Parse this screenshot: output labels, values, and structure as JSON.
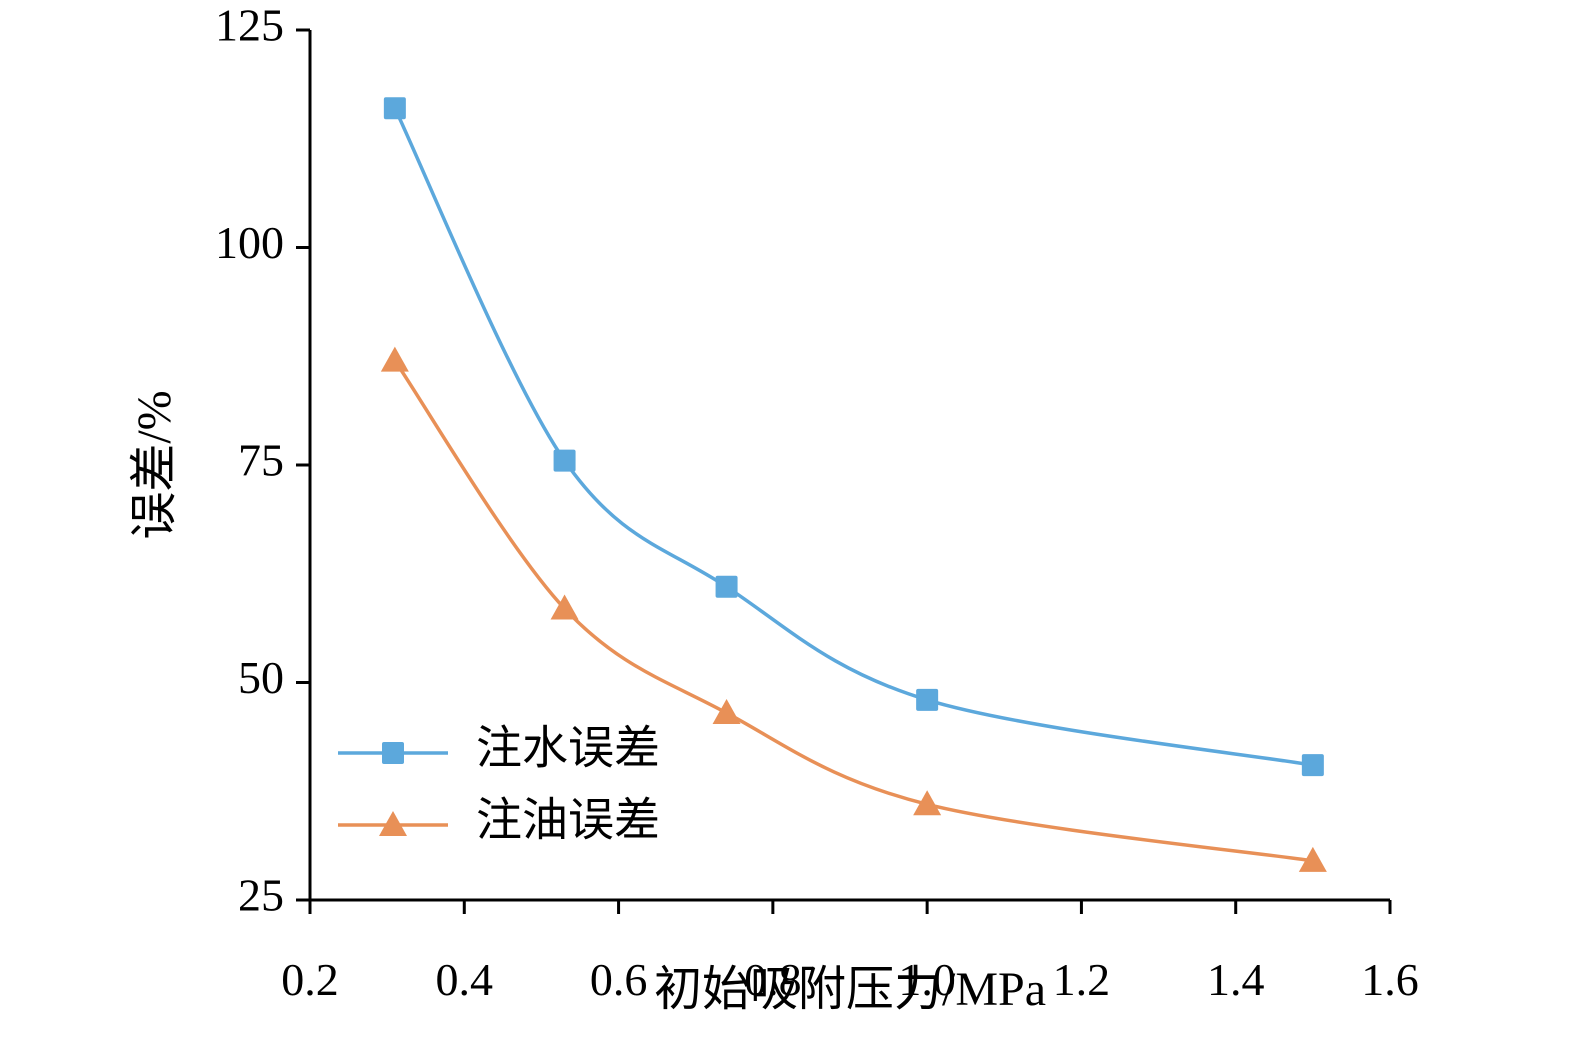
{
  "chart_data": {
    "type": "line",
    "title": "",
    "xlabel": "初始吸附压力/MPa",
    "ylabel": "误差/%",
    "xlim": [
      0.2,
      1.6
    ],
    "ylim": [
      25,
      125
    ],
    "grid": false,
    "legend_position": "inside-lower-left",
    "xticks": [
      0.2,
      0.4,
      0.6,
      0.8,
      1.0,
      1.2,
      1.4,
      1.6
    ],
    "xtick_labels": [
      "0.2",
      "0.4",
      "0.6",
      "0.8",
      "1.0",
      "1.2",
      "1.4",
      "1.6"
    ],
    "yticks": [
      25,
      50,
      75,
      100,
      125
    ],
    "ytick_labels": [
      "25",
      "50",
      "75",
      "100",
      "125"
    ],
    "x": [
      0.31,
      0.53,
      0.74,
      1.0,
      1.5
    ],
    "series": [
      {
        "name": "注水误差",
        "color": "#5CA8DC",
        "marker": "square",
        "values": [
          116,
          75.5,
          61,
          48,
          40.5
        ]
      },
      {
        "name": "注油误差",
        "color": "#E89057",
        "marker": "triangle",
        "values": [
          87,
          58.5,
          46.5,
          36,
          29.5
        ]
      }
    ],
    "axis_color": "#000000",
    "line_width": 3.5
  }
}
